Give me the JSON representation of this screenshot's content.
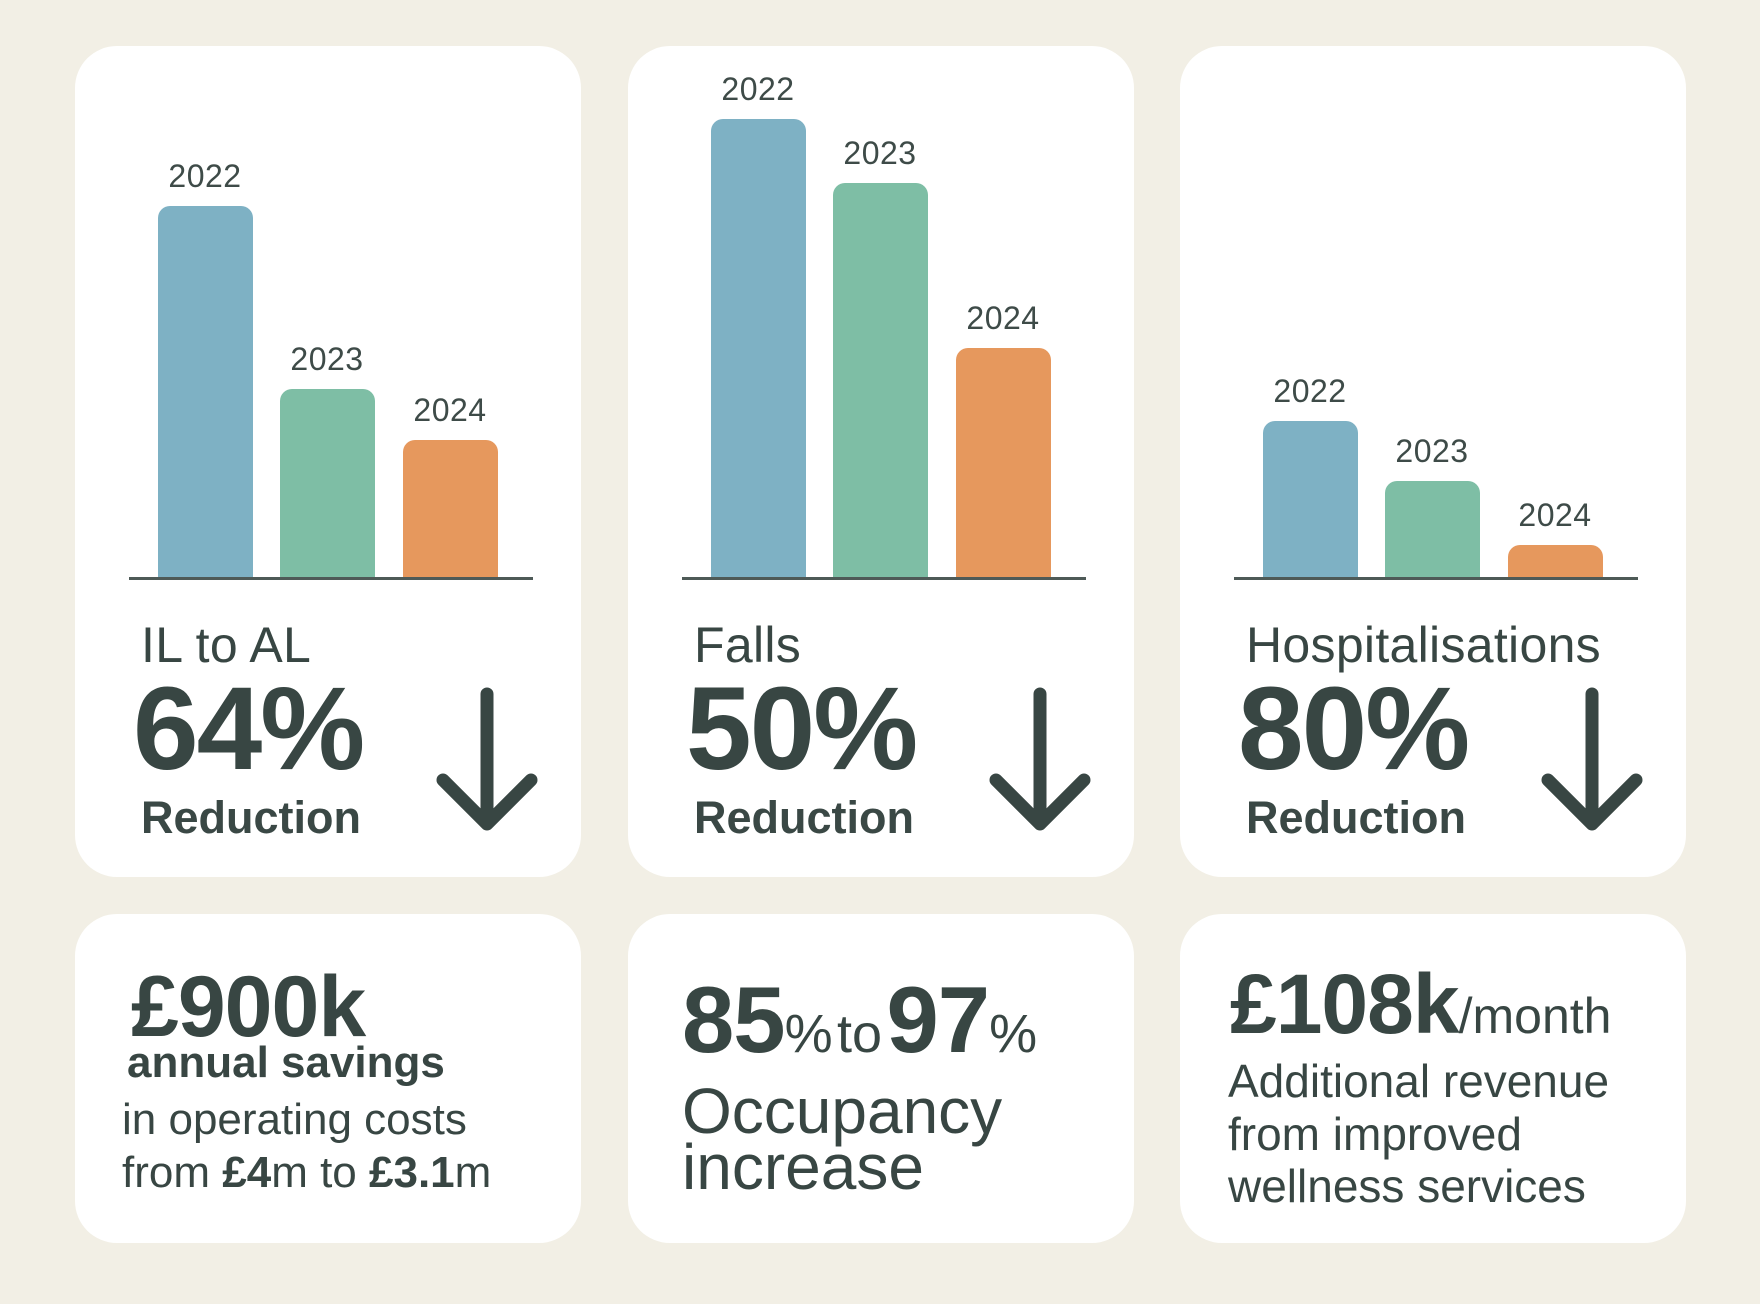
{
  "colors": {
    "background": "#F2EFE5",
    "card": "#FFFFFF",
    "text": "#384643",
    "bar_2022": "#7EB1C4",
    "bar_2023": "#7EBEA5",
    "bar_2024": "#E6985D"
  },
  "chart_data": [
    {
      "type": "bar",
      "title": "IL to AL",
      "categories": [
        "2022",
        "2023",
        "2024"
      ],
      "values": [
        81,
        41,
        30
      ],
      "ylim": [
        0,
        100
      ],
      "grid": false,
      "note": "relative heights, no axis shown"
    },
    {
      "type": "bar",
      "title": "Falls",
      "categories": [
        "2022",
        "2023",
        "2024"
      ],
      "values": [
        100,
        86,
        50
      ],
      "ylim": [
        0,
        100
      ],
      "grid": false,
      "note": "relative heights, no axis shown"
    },
    {
      "type": "bar",
      "title": "Hospitalisations",
      "categories": [
        "2022",
        "2023",
        "2024"
      ],
      "values": [
        34,
        21,
        7
      ],
      "ylim": [
        0,
        100
      ],
      "grid": false,
      "note": "relative heights, no axis shown"
    }
  ],
  "metrics": [
    {
      "title": "IL to AL",
      "value": "64%",
      "label": "Reduction",
      "icon": "arrow-down-icon"
    },
    {
      "title": "Falls",
      "value": "50%",
      "label": "Reduction",
      "icon": "arrow-down-icon"
    },
    {
      "title": "Hospitalisations",
      "value": "80%",
      "label": "Reduction",
      "icon": "arrow-down-icon"
    }
  ],
  "savings": {
    "amount": "£900k",
    "line1": "annual savings",
    "line2": "in operating costs",
    "from_word": "from",
    "from_value": "£4",
    "from_unit": "m",
    "to_word": "to",
    "to_value": "£3.1",
    "to_unit": "m"
  },
  "occupancy": {
    "from_value": "85",
    "from_unit": "%",
    "to_word": "to",
    "to_value": "97",
    "to_unit": "%",
    "line1": "Occupancy",
    "line2": "increase"
  },
  "revenue": {
    "amount": "£108k",
    "unit": "/month",
    "line1": "Additional revenue",
    "line2": "from improved",
    "line3": "wellness services"
  }
}
